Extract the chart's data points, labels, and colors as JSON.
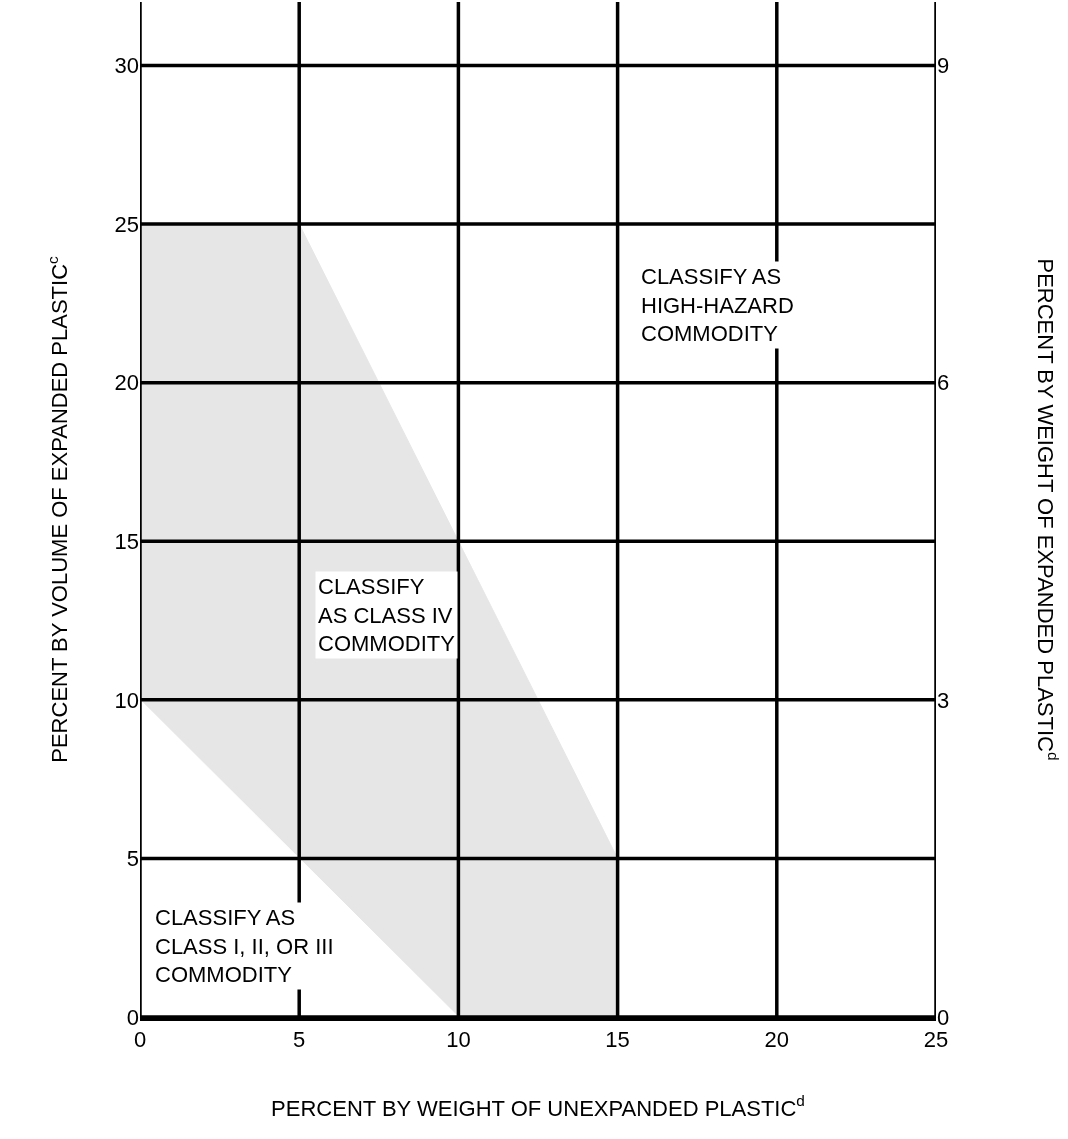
{
  "chart_data": {
    "type": "area",
    "xlabel": "PERCENT BY WEIGHT OF UNEXPANDED PLASTIC$^{d}$",
    "ylabel": "PERCENT BY VOLUME OF EXPANDED PLASTIC$^{c}$",
    "y2label": "PERCENT BY WEIGHT OF EXPANDED PLASTIC$^{d}$",
    "x": [
      0,
      5,
      10,
      15
    ],
    "series": [
      {
        "color": "#ffffff",
        "values": [
          10,
          5,
          0,
          0
        ]
      },
      {
        "color": "#e6e6e6",
        "values": [
          15,
          20,
          15,
          5
        ]
      }
    ],
    "xlim": [
      0,
      25
    ],
    "xticks": [
      0,
      5,
      10,
      15,
      20,
      25
    ],
    "ylim": [
      0,
      32
    ],
    "yticks": [
      0,
      5,
      10,
      15,
      20,
      25,
      30
    ],
    "y2lim": [
      0,
      9.6
    ],
    "y2ticks": [
      0,
      3,
      6,
      9
    ],
    "grid": true,
    "stacked": true,
    "annotations": [
      "CLASSIFY AS\nHIGH-HAZARD\nCOMMODITY",
      "CLASSIFY\nAS CLASS IV\nCOMMODITY",
      "CLASSIFY AS\nCLASS I, II, OR III\nCOMMODITY"
    ]
  }
}
